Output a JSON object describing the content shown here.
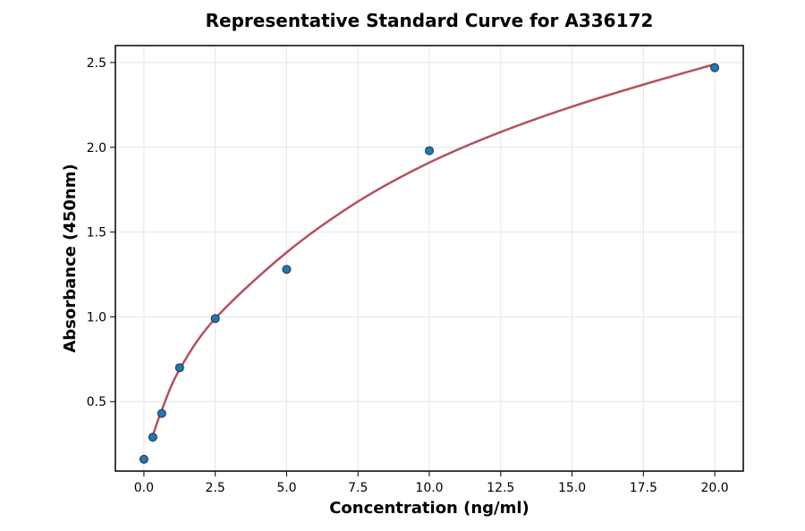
{
  "chart_data": {
    "type": "scatter",
    "title": "Representative Standard Curve for A336172",
    "xlabel": "Concentration (ng/ml)",
    "ylabel": "Absorbance (450nm)",
    "xlim": [
      -1.0,
      21.0
    ],
    "ylim": [
      0.09,
      2.6
    ],
    "x_ticks": [
      0.0,
      2.5,
      5.0,
      7.5,
      10.0,
      12.5,
      15.0,
      17.5,
      20.0
    ],
    "x_tick_labels": [
      "0.0",
      "2.5",
      "5.0",
      "7.5",
      "10.0",
      "12.5",
      "15.0",
      "17.5",
      "20.0"
    ],
    "y_ticks": [
      0.5,
      1.0,
      1.5,
      2.0,
      2.5
    ],
    "y_tick_labels": [
      "0.5",
      "1.0",
      "1.5",
      "2.0",
      "2.5"
    ],
    "grid": true,
    "series": [
      {
        "kind": "points",
        "color": "#1f77b4",
        "x": [
          0.0,
          0.313,
          0.625,
          1.25,
          2.5,
          5.0,
          10.0,
          20.0
        ],
        "y": [
          0.16,
          0.29,
          0.43,
          0.7,
          0.99,
          1.28,
          1.98,
          2.47
        ]
      },
      {
        "kind": "fit-curve",
        "color": "#b5515f",
        "x": [
          0.313,
          0.625,
          1.25,
          2.5,
          5.0,
          7.5,
          10.0,
          12.5,
          15.0,
          17.5,
          20.0
        ],
        "y": [
          0.3,
          0.45,
          0.69,
          0.99,
          1.38,
          1.68,
          1.91,
          2.09,
          2.24,
          2.37,
          2.49
        ]
      }
    ]
  }
}
